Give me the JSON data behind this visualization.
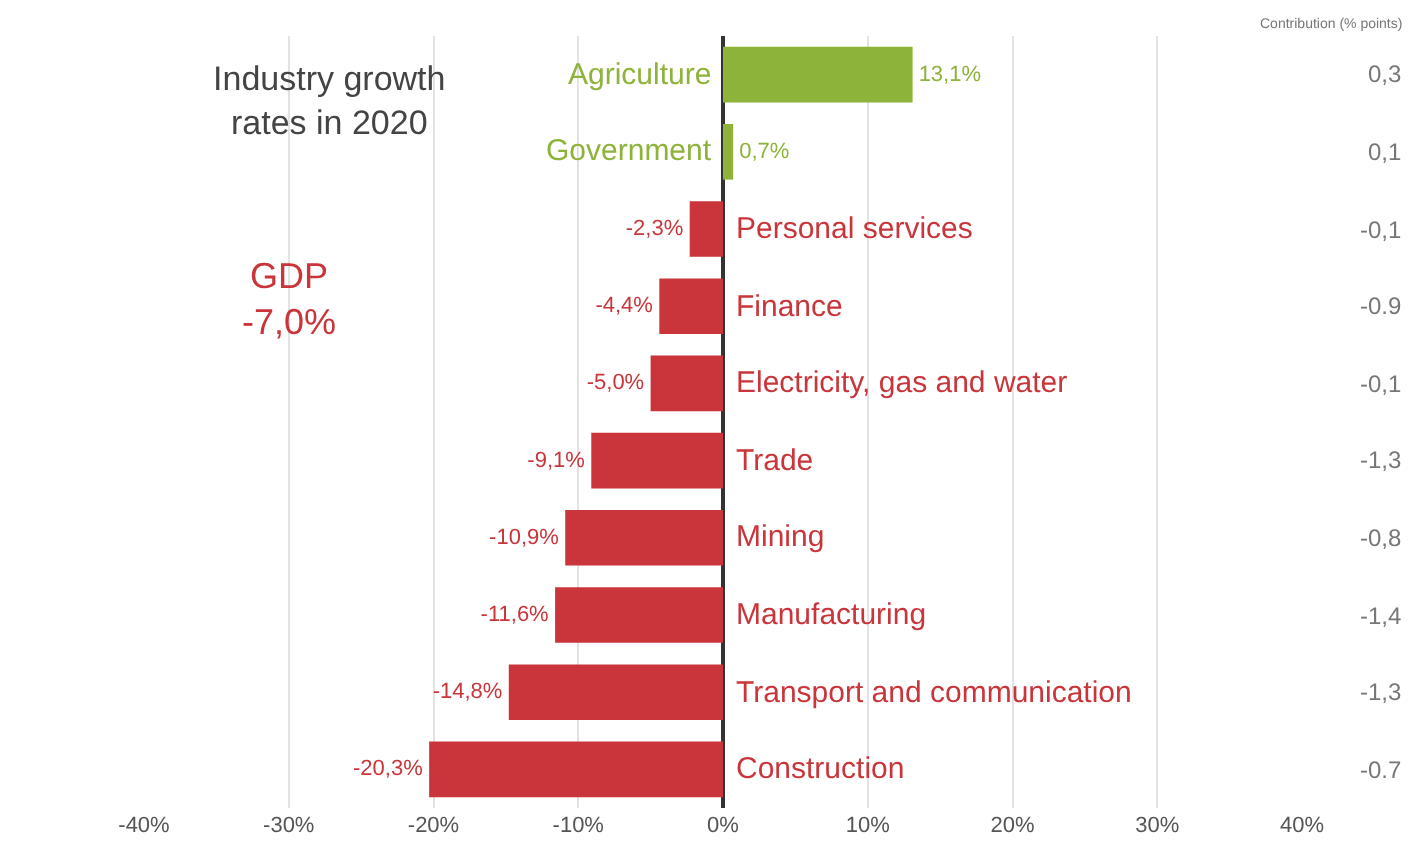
{
  "chart_data": {
    "type": "bar",
    "orientation": "horizontal",
    "title": "Industry growth rates in 2020",
    "categories": [
      "Agriculture",
      "Government",
      "Personal services",
      "Finance",
      "Electricity, gas and water",
      "Trade",
      "Mining",
      "Manufacturing",
      "Transport and communication",
      "Construction"
    ],
    "values": [
      13.1,
      0.7,
      -2.3,
      -4.4,
      -5.0,
      -9.1,
      -10.9,
      -11.6,
      -14.8,
      -20.3
    ],
    "colors": [
      "#8db33a",
      "#8db33a",
      "#c9353a",
      "#c9353a",
      "#c9353a",
      "#c9353a",
      "#c9353a",
      "#c9353a",
      "#c9353a",
      "#c9353a"
    ],
    "value_labels": [
      "13,1%",
      "0,7%",
      "-2,3%",
      "-4,4%",
      "-5,0%",
      "-9,1%",
      "-10,9%",
      "-11,6%",
      "-14,8%",
      "-20,3%"
    ],
    "xlim": [
      -40,
      40
    ],
    "xticks": [
      {
        "value": -40,
        "label": "-40%"
      },
      {
        "value": -30,
        "label": "-30%"
      },
      {
        "value": -20,
        "label": "-20%"
      },
      {
        "value": -10,
        "label": "-10%"
      },
      {
        "value": 0,
        "label": "0%"
      },
      {
        "value": 10,
        "label": "10%"
      },
      {
        "value": 20,
        "label": "20%"
      },
      {
        "value": 30,
        "label": "30%"
      },
      {
        "value": 40,
        "label": "40%"
      }
    ],
    "grid": "x",
    "annotations": [
      "Contribution (% points)",
      "0,3",
      "0,1",
      "-0,1",
      "-0.9",
      "-0,1",
      "-1,3",
      "-0,8",
      "-1,4",
      "-1,3",
      "-0.7",
      "GDP",
      "-7,0%"
    ]
  }
}
